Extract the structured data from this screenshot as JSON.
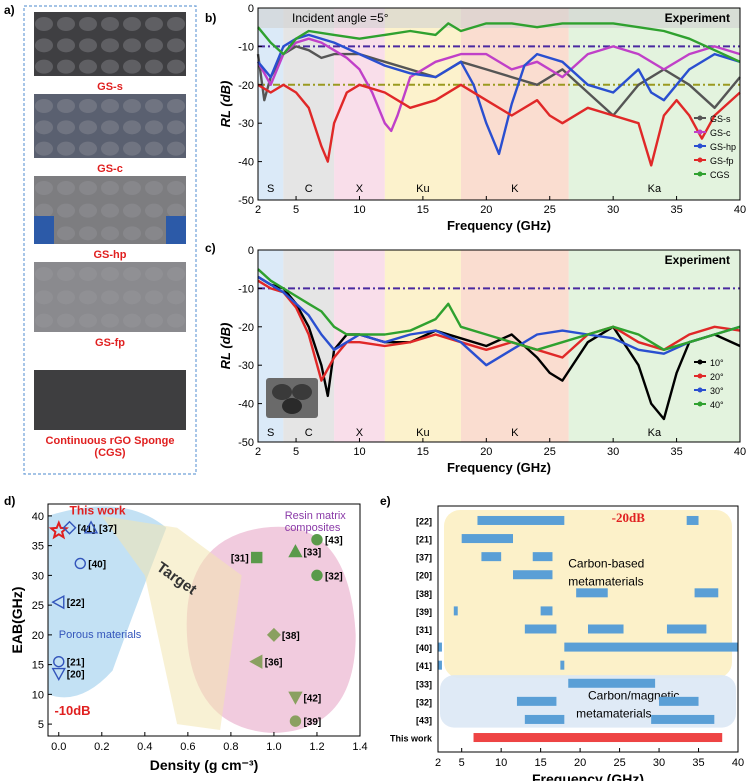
{
  "panel_labels": {
    "a": "a)",
    "b": "b)",
    "c": "c)",
    "d": "d)",
    "e": "e)"
  },
  "panel_a": {
    "photos": [
      {
        "label": "GS-s",
        "color": "#3f3f42"
      },
      {
        "label": "GS-c",
        "color": "#5a6070"
      },
      {
        "label": "GS-hp",
        "color": "#7d7d80"
      },
      {
        "label": "GS-fp",
        "color": "#8a8a8e"
      },
      {
        "label": "Continuous rGO Sponge",
        "color": "#3e3e40"
      }
    ],
    "last_label_line2": "(CGS)"
  },
  "colors": {
    "red_label": "#e02020",
    "band_S": "#cfe3f5",
    "band_C": "#dcdcdc",
    "band_X": "#f7d3e3",
    "band_Ku": "#fbeebb",
    "band_K": "#f8d2c0",
    "band_Ka": "#d9efd3"
  },
  "bands": [
    "S",
    "C",
    "X",
    "Ku",
    "K",
    "Ka"
  ],
  "chart_data": [
    {
      "panel": "b",
      "type": "line",
      "title": "Incident angle =5°",
      "annotation": "Experiment",
      "xlabel": "Frequency (GHz)",
      "ylabel": "RL (dB)",
      "xlim": [
        2,
        40
      ],
      "ylim": [
        -50,
        0
      ],
      "xticks": [
        2,
        5,
        10,
        15,
        20,
        25,
        30,
        35,
        40
      ],
      "yticks": [
        0,
        -10,
        -20,
        -30,
        -40,
        -50
      ],
      "reference_lines": [
        -10,
        -20
      ],
      "series": [
        {
          "name": "GS-s",
          "color": "#555555",
          "x": [
            2,
            2.5,
            3,
            4,
            5,
            6,
            7,
            8,
            10,
            12,
            14,
            16,
            18,
            20,
            22,
            24,
            26,
            28,
            30,
            32,
            34,
            36,
            38,
            40
          ],
          "y": [
            -12,
            -24,
            -18,
            -12,
            -10,
            -11,
            -13,
            -12,
            -12,
            -14,
            -16,
            -18,
            -14,
            -16,
            -18,
            -20,
            -16,
            -22,
            -28,
            -20,
            -16,
            -20,
            -26,
            -18
          ]
        },
        {
          "name": "GS-c",
          "color": "#c040c8",
          "x": [
            2,
            3,
            4,
            5,
            6,
            7,
            8,
            9,
            10,
            11,
            12,
            12.5,
            13,
            14,
            16,
            18,
            20,
            22,
            24,
            26,
            28,
            30,
            32,
            34,
            36,
            38,
            40
          ],
          "y": [
            -14,
            -20,
            -12,
            -9,
            -8,
            -9,
            -11,
            -13,
            -16,
            -22,
            -30,
            -32,
            -28,
            -18,
            -14,
            -12,
            -12,
            -16,
            -14,
            -18,
            -12,
            -10,
            -12,
            -16,
            -12,
            -10,
            -12
          ]
        },
        {
          "name": "GS-hp",
          "color": "#2a4fd0",
          "x": [
            2,
            3,
            4,
            5,
            6,
            8,
            10,
            12,
            14,
            16,
            18,
            19,
            20,
            21,
            22,
            23,
            24,
            26,
            28,
            30,
            32,
            33,
            34,
            36,
            38,
            40
          ],
          "y": [
            -14,
            -18,
            -10,
            -8,
            -7,
            -9,
            -12,
            -15,
            -17,
            -18,
            -14,
            -20,
            -30,
            -38,
            -25,
            -15,
            -12,
            -14,
            -20,
            -22,
            -16,
            -22,
            -24,
            -16,
            -12,
            -14
          ]
        },
        {
          "name": "GS-fp",
          "color": "#e02828",
          "x": [
            2,
            3,
            4,
            5,
            6,
            7,
            7.5,
            8,
            9,
            10,
            12,
            14,
            16,
            18,
            20,
            22,
            24,
            25,
            26,
            28,
            30,
            32,
            33,
            34,
            35,
            36,
            37,
            38,
            40
          ],
          "y": [
            -20,
            -22,
            -20,
            -22,
            -26,
            -36,
            -40,
            -30,
            -22,
            -20,
            -22,
            -26,
            -24,
            -20,
            -24,
            -28,
            -24,
            -28,
            -30,
            -26,
            -28,
            -30,
            -41,
            -28,
            -24,
            -28,
            -34,
            -28,
            -22
          ]
        },
        {
          "name": "CGS",
          "color": "#2fa12f",
          "x": [
            2,
            3,
            4,
            5,
            6,
            8,
            10,
            12,
            14,
            16,
            17,
            18,
            20,
            22,
            24,
            26,
            28,
            30,
            32,
            34,
            36,
            38,
            40
          ],
          "y": [
            -5,
            -9,
            -12,
            -8,
            -6,
            -7,
            -8,
            -7,
            -6,
            -7,
            -4,
            -6,
            -4,
            -4,
            -5,
            -4,
            -4,
            -4,
            -5,
            -6,
            -8,
            -11,
            -14
          ]
        }
      ]
    },
    {
      "panel": "c",
      "type": "line",
      "annotation": "Experiment",
      "xlabel": "Frequency (GHz)",
      "ylabel": "RL (dB)",
      "xlim": [
        2,
        40
      ],
      "ylim": [
        -50,
        0
      ],
      "xticks": [
        2,
        5,
        10,
        15,
        20,
        25,
        30,
        35,
        40
      ],
      "yticks": [
        0,
        -10,
        -20,
        -30,
        -40,
        -50
      ],
      "reference_lines": [
        -10
      ],
      "series": [
        {
          "name": "10°",
          "color": "#000000",
          "x": [
            2,
            3,
            4,
            5,
            6,
            7,
            7.5,
            8,
            9,
            10,
            12,
            14,
            16,
            18,
            20,
            22,
            24,
            25,
            26,
            28,
            30,
            32,
            33,
            34,
            35,
            36,
            38,
            40
          ],
          "y": [
            -7,
            -9,
            -10,
            -14,
            -20,
            -30,
            -38,
            -26,
            -22,
            -22,
            -24,
            -24,
            -21,
            -23,
            -25,
            -22,
            -28,
            -32,
            -34,
            -24,
            -20,
            -30,
            -40,
            -44,
            -32,
            -24,
            -22,
            -25
          ]
        },
        {
          "name": "20°",
          "color": "#e02828",
          "x": [
            2,
            3,
            4,
            5,
            6,
            7,
            8,
            9,
            10,
            12,
            14,
            16,
            18,
            20,
            22,
            24,
            26,
            28,
            30,
            32,
            34,
            36,
            38,
            40
          ],
          "y": [
            -8,
            -10,
            -11,
            -15,
            -22,
            -34,
            -28,
            -24,
            -24,
            -25,
            -24,
            -22,
            -24,
            -26,
            -24,
            -26,
            -28,
            -22,
            -20,
            -24,
            -26,
            -22,
            -20,
            -21
          ]
        },
        {
          "name": "30°",
          "color": "#2a4fd0",
          "x": [
            2,
            3,
            4,
            5,
            6,
            7,
            8,
            9,
            10,
            12,
            14,
            16,
            18,
            20,
            22,
            24,
            26,
            28,
            30,
            32,
            34,
            36,
            38,
            40
          ],
          "y": [
            -7,
            -9,
            -11,
            -14,
            -17,
            -22,
            -26,
            -24,
            -22,
            -24,
            -22,
            -21,
            -24,
            -30,
            -26,
            -22,
            -21,
            -22,
            -23,
            -26,
            -27,
            -24,
            -22,
            -20
          ]
        },
        {
          "name": "40°",
          "color": "#2fa12f",
          "x": [
            2,
            3,
            4,
            5,
            6,
            7,
            8,
            9,
            10,
            12,
            14,
            16,
            17,
            18,
            20,
            22,
            24,
            26,
            28,
            30,
            32,
            34,
            36,
            38,
            40
          ],
          "y": [
            -5,
            -8,
            -10,
            -12,
            -14,
            -16,
            -20,
            -22,
            -22,
            -22,
            -21,
            -18,
            -14,
            -20,
            -22,
            -24,
            -26,
            -24,
            -22,
            -20,
            -22,
            -26,
            -24,
            -22,
            -20
          ]
        }
      ],
      "band_labels_y": -44
    },
    {
      "panel": "d",
      "type": "scatter",
      "xlabel": "Density (g cm⁻³)",
      "ylabel": "EAB(GHz)",
      "xlim": [
        -0.05,
        1.4
      ],
      "ylim": [
        3,
        42
      ],
      "xticks": [
        0.0,
        0.2,
        0.4,
        0.6,
        0.8,
        1.0,
        1.2,
        1.4
      ],
      "yticks": [
        5,
        10,
        15,
        20,
        25,
        30,
        35,
        40
      ],
      "annotations": {
        "this_work": "This work",
        "porous": "Porous materials",
        "resin_line1": "Resin matrix",
        "resin_line2": "composites",
        "target": "Target",
        "threshold": "-10dB"
      },
      "points": [
        {
          "label": "This work",
          "x": 0.0,
          "y": 37.5,
          "marker": "star",
          "color": "#e02020"
        },
        {
          "label": "[41]",
          "x": 0.05,
          "y": 38,
          "marker": "diamond",
          "color": "#3355bb"
        },
        {
          "label": "[37]",
          "x": 0.15,
          "y": 38,
          "marker": "triangle",
          "color": "#3355bb"
        },
        {
          "label": "[40]",
          "x": 0.1,
          "y": 32,
          "marker": "circle",
          "color": "#3355bb"
        },
        {
          "label": "[22]",
          "x": 0.0,
          "y": 25.5,
          "marker": "tri-left",
          "color": "#3355bb"
        },
        {
          "label": "[21]",
          "x": 0.0,
          "y": 15.5,
          "marker": "circle",
          "color": "#3355bb"
        },
        {
          "label": "[20]",
          "x": 0.0,
          "y": 13.5,
          "marker": "tri-down",
          "color": "#3355bb"
        },
        {
          "label": "[31]",
          "x": 0.92,
          "y": 33,
          "marker": "square",
          "color": "#5a9a4a"
        },
        {
          "label": "[33]",
          "x": 1.1,
          "y": 34,
          "marker": "triangle",
          "color": "#5a9a4a"
        },
        {
          "label": "[43]",
          "x": 1.2,
          "y": 36,
          "marker": "circle",
          "color": "#5a9a4a"
        },
        {
          "label": "[32]",
          "x": 1.2,
          "y": 30,
          "marker": "circle",
          "color": "#5a9a4a"
        },
        {
          "label": "[38]",
          "x": 1.0,
          "y": 20,
          "marker": "diamond",
          "color": "#8aa060"
        },
        {
          "label": "[36]",
          "x": 0.92,
          "y": 15.5,
          "marker": "tri-left",
          "color": "#8aa060"
        },
        {
          "label": "[42]",
          "x": 1.1,
          "y": 9.5,
          "marker": "tri-down",
          "color": "#8aa060"
        },
        {
          "label": "[39]",
          "x": 1.1,
          "y": 5.5,
          "marker": "circle",
          "color": "#8aa060"
        }
      ]
    },
    {
      "panel": "e",
      "type": "bar",
      "xlabel": "Frequency (GHz)",
      "xlim": [
        2,
        40
      ],
      "xticks": [
        2,
        5,
        10,
        15,
        20,
        25,
        30,
        35,
        40
      ],
      "annotations": {
        "threshold": "-20dB",
        "carbon_line1": "Carbon-based",
        "carbon_line2": "metamaterials",
        "magnetic_line1": "Carbon/magnetic",
        "magnetic_line2": "metamaterials"
      },
      "rows": [
        {
          "label": "[22]",
          "ranges": [
            [
              7,
              18
            ],
            [
              33.5,
              35
            ]
          ]
        },
        {
          "label": "[21]",
          "ranges": [
            [
              5,
              11.5
            ]
          ]
        },
        {
          "label": "[37]",
          "ranges": [
            [
              7.5,
              10
            ],
            [
              14,
              16.5
            ]
          ]
        },
        {
          "label": "[20]",
          "ranges": [
            [
              11.5,
              16.5
            ]
          ]
        },
        {
          "label": "[38]",
          "ranges": [
            [
              19.5,
              23.5
            ],
            [
              34.5,
              37.5
            ]
          ]
        },
        {
          "label": "[39]",
          "ranges": [
            [
              4,
              4.5
            ],
            [
              15,
              16.5
            ]
          ]
        },
        {
          "label": "[31]",
          "ranges": [
            [
              13,
              17
            ],
            [
              21,
              25.5
            ],
            [
              31,
              36
            ]
          ]
        },
        {
          "label": "[40]",
          "ranges": [
            [
              2,
              2.5
            ],
            [
              18,
              40
            ]
          ]
        },
        {
          "label": "[41]",
          "ranges": [
            [
              2,
              2.5
            ],
            [
              17.5,
              18
            ]
          ]
        },
        {
          "label": "[33]",
          "ranges": [
            [
              18.5,
              29.5
            ]
          ]
        },
        {
          "label": "[32]",
          "ranges": [
            [
              12,
              17
            ],
            [
              30,
              35
            ]
          ]
        },
        {
          "label": "[43]",
          "ranges": [
            [
              13,
              18
            ],
            [
              29,
              37
            ]
          ]
        },
        {
          "label": "This work",
          "ranges": [
            [
              6.5,
              38
            ]
          ],
          "highlight": true
        }
      ]
    }
  ]
}
